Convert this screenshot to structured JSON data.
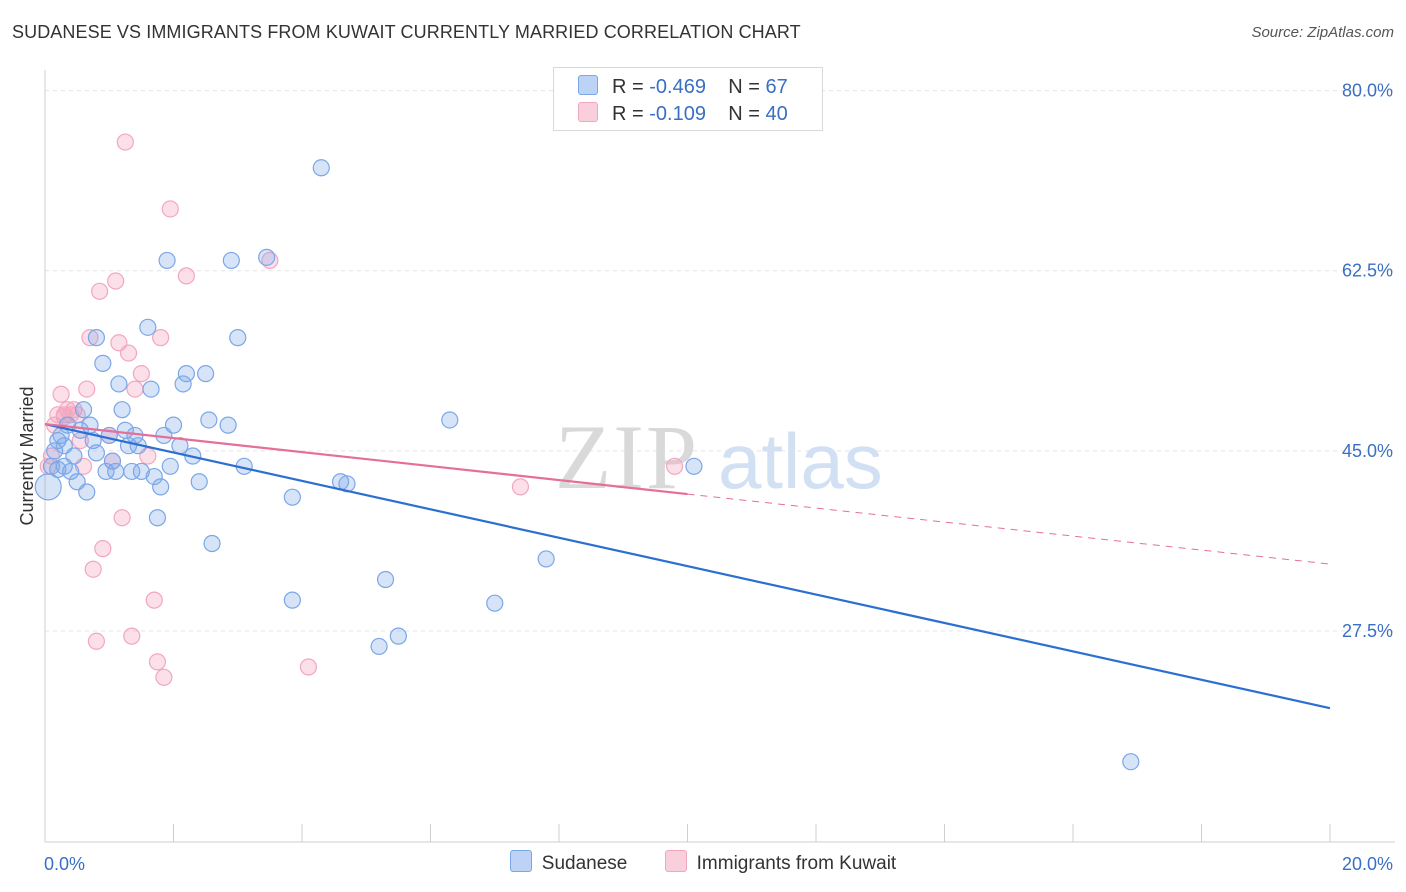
{
  "title": "SUDANESE VS IMMIGRANTS FROM KUWAIT CURRENTLY MARRIED CORRELATION CHART",
  "source": "Source: ZipAtlas.com",
  "watermark": {
    "zip": "ZIP",
    "atlas": "atlas"
  },
  "legend": {
    "rows": [
      {
        "r_label": "R =",
        "r_value": "-0.469",
        "n_label": "N =",
        "n_value": "67"
      },
      {
        "r_label": "R =",
        "r_value": "-0.109",
        "n_label": "N =",
        "n_value": "40"
      }
    ]
  },
  "chart_data": {
    "type": "scatter",
    "title": "SUDANESE VS IMMIGRANTS FROM KUWAIT CURRENTLY MARRIED CORRELATION CHART",
    "xlabel": "",
    "ylabel": "Currently Married",
    "xlim": [
      0,
      20
    ],
    "ylim": [
      7,
      82
    ],
    "x_tick_labels": [
      "0.0%",
      "20.0%"
    ],
    "y_ticks": [
      27.5,
      45.0,
      62.5,
      80.0
    ],
    "y_tick_labels": [
      "27.5%",
      "45.0%",
      "62.5%",
      "80.0%"
    ],
    "grid": true,
    "legend_position": "top-center",
    "colors": {
      "sudanese": "#7aa7e8",
      "kuwait": "#f3a6c0",
      "sudanese_line": "#2b6fd1",
      "kuwait_line": "#e56f9a",
      "tick": "#3a6fc4"
    },
    "series": [
      {
        "name": "Sudanese",
        "r": -0.469,
        "n": 67,
        "points": [
          [
            0.05,
            41.5
          ],
          [
            0.1,
            43.5
          ],
          [
            0.15,
            45.0
          ],
          [
            0.2,
            46.0
          ],
          [
            0.25,
            46.5
          ],
          [
            0.3,
            45.5
          ],
          [
            0.35,
            47.5
          ],
          [
            0.4,
            43.0
          ],
          [
            0.45,
            44.5
          ],
          [
            0.5,
            42.0
          ],
          [
            0.55,
            47.0
          ],
          [
            0.6,
            49.0
          ],
          [
            0.65,
            41.0
          ],
          [
            0.7,
            47.5
          ],
          [
            0.75,
            46.0
          ],
          [
            0.8,
            56.0
          ],
          [
            0.9,
            53.5
          ],
          [
            0.95,
            43.0
          ],
          [
            1.0,
            46.5
          ],
          [
            1.05,
            44.0
          ],
          [
            1.1,
            43.0
          ],
          [
            1.15,
            51.5
          ],
          [
            1.2,
            49.0
          ],
          [
            1.25,
            47.0
          ],
          [
            1.3,
            45.5
          ],
          [
            1.35,
            43.0
          ],
          [
            1.4,
            46.5
          ],
          [
            1.45,
            45.5
          ],
          [
            1.5,
            43.0
          ],
          [
            1.6,
            57.0
          ],
          [
            1.65,
            51.0
          ],
          [
            1.7,
            42.5
          ],
          [
            1.75,
            38.5
          ],
          [
            1.8,
            41.5
          ],
          [
            1.85,
            46.5
          ],
          [
            1.9,
            63.5
          ],
          [
            1.95,
            43.5
          ],
          [
            2.0,
            47.5
          ],
          [
            2.1,
            45.5
          ],
          [
            2.15,
            51.5
          ],
          [
            2.2,
            52.5
          ],
          [
            2.3,
            44.5
          ],
          [
            2.4,
            42.0
          ],
          [
            2.5,
            52.5
          ],
          [
            2.55,
            48.0
          ],
          [
            2.6,
            36.0
          ],
          [
            2.85,
            47.5
          ],
          [
            2.9,
            63.5
          ],
          [
            3.0,
            56.0
          ],
          [
            3.1,
            43.5
          ],
          [
            3.45,
            63.8
          ],
          [
            3.85,
            30.5
          ],
          [
            3.85,
            40.5
          ],
          [
            4.3,
            72.5
          ],
          [
            4.6,
            42.0
          ],
          [
            4.7,
            41.8
          ],
          [
            5.2,
            26.0
          ],
          [
            5.3,
            32.5
          ],
          [
            5.5,
            27.0
          ],
          [
            6.3,
            48.0
          ],
          [
            7.0,
            30.2
          ],
          [
            7.8,
            34.5
          ],
          [
            10.1,
            43.5
          ],
          [
            16.9,
            14.8
          ],
          [
            0.3,
            43.5
          ],
          [
            0.8,
            44.8
          ],
          [
            0.2,
            43.2
          ]
        ]
      },
      {
        "name": "Immigrants from Kuwait",
        "r": -0.109,
        "n": 40,
        "points": [
          [
            0.05,
            43.5
          ],
          [
            0.1,
            44.5
          ],
          [
            0.15,
            47.5
          ],
          [
            0.2,
            48.5
          ],
          [
            0.25,
            50.5
          ],
          [
            0.3,
            48.5
          ],
          [
            0.35,
            49.0
          ],
          [
            0.4,
            48.5
          ],
          [
            0.45,
            49.0
          ],
          [
            0.5,
            48.5
          ],
          [
            0.55,
            46.0
          ],
          [
            0.6,
            43.5
          ],
          [
            0.65,
            51.0
          ],
          [
            0.7,
            56.0
          ],
          [
            0.75,
            33.5
          ],
          [
            0.8,
            26.5
          ],
          [
            0.85,
            60.5
          ],
          [
            0.9,
            35.5
          ],
          [
            1.0,
            46.5
          ],
          [
            1.05,
            44.0
          ],
          [
            1.1,
            61.5
          ],
          [
            1.15,
            55.5
          ],
          [
            1.2,
            38.5
          ],
          [
            1.25,
            75.0
          ],
          [
            1.3,
            54.5
          ],
          [
            1.35,
            27.0
          ],
          [
            1.4,
            51.0
          ],
          [
            1.5,
            52.5
          ],
          [
            1.6,
            44.5
          ],
          [
            1.7,
            30.5
          ],
          [
            1.75,
            24.5
          ],
          [
            1.8,
            56.0
          ],
          [
            1.85,
            23.0
          ],
          [
            1.95,
            68.5
          ],
          [
            2.2,
            62.0
          ],
          [
            3.5,
            63.5
          ],
          [
            4.1,
            24.0
          ],
          [
            7.4,
            41.5
          ],
          [
            9.8,
            43.5
          ],
          [
            0.3,
            48.3
          ]
        ]
      }
    ],
    "trend_lines": [
      {
        "series": "Sudanese",
        "x": [
          0,
          20
        ],
        "y": [
          47.6,
          20.0
        ],
        "dashed_from": null
      },
      {
        "series": "Immigrants from Kuwait",
        "x": [
          0,
          20
        ],
        "y": [
          47.6,
          34.0
        ],
        "dashed_from": 10
      }
    ]
  }
}
